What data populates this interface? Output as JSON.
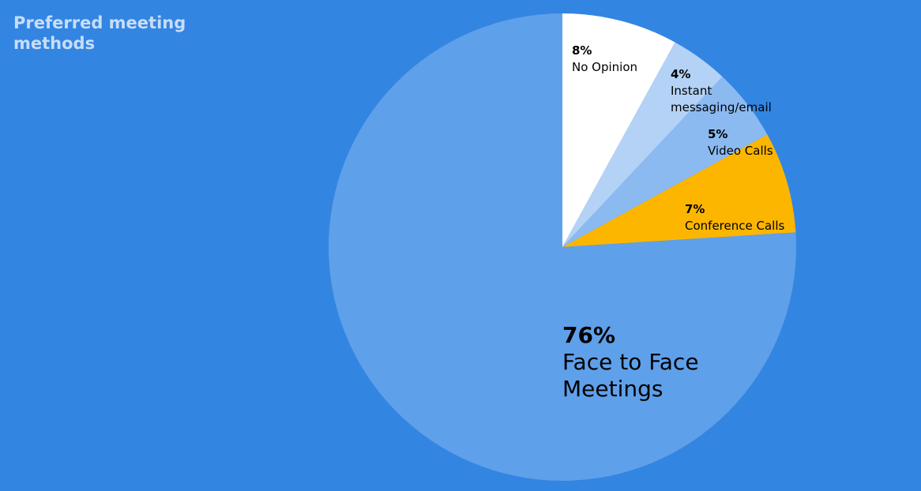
{
  "chart_data": {
    "type": "pie",
    "title": "Preferred meeting methods",
    "categories": [
      "No Opinion",
      "Instant messaging/email",
      "Video Calls",
      "Conference Calls",
      "Face to Face Meetings"
    ],
    "values": [
      8,
      4,
      5,
      7,
      76
    ],
    "value_labels": [
      "8%",
      "4%",
      "5%",
      "7%",
      "76%"
    ],
    "colors": [
      "#ffffff",
      "#b4d2f6",
      "#8bbaf1",
      "#fdb600",
      "#5fa0ea"
    ]
  }
}
